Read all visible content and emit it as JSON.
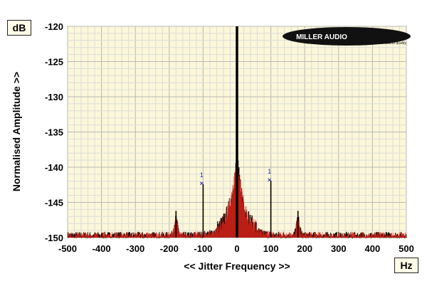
{
  "chart_data": {
    "type": "line",
    "ylabel": "Normalised Amplitude >>",
    "xlabel": "<< Jitter Frequency >>",
    "y_unit": "dB",
    "x_unit": "Hz",
    "xlim": [
      -500,
      500
    ],
    "ylim": [
      -150,
      -120
    ],
    "x_ticks": [
      "-500",
      "-400",
      "-300",
      "-200",
      "-100",
      "0",
      "100",
      "200",
      "300",
      "400",
      "500"
    ],
    "y_ticks": [
      "-120",
      "-125",
      "-130",
      "-135",
      "-140",
      "-145",
      "-150"
    ],
    "grid": true,
    "noise_floor_db": -149.4,
    "series": [
      {
        "color": "#000000"
      },
      {
        "color": "#e8261a"
      }
    ],
    "peaks": [
      {
        "x": 0,
        "y": -120
      },
      {
        "x": -100,
        "y": -142.4
      },
      {
        "x": 100,
        "y": -141.9
      },
      {
        "x": -180,
        "y": -146.2
      },
      {
        "x": 180,
        "y": -146.2
      }
    ],
    "markers": [
      {
        "label": "1",
        "x": -100,
        "y": -142.4
      },
      {
        "label": "1",
        "x": 100,
        "y": -141.9
      }
    ],
    "logo": {
      "text_left": "MILLER AUDIO",
      "text_right": "RESEARCH",
      "tagline": "Getting the measure of sound quality"
    }
  }
}
